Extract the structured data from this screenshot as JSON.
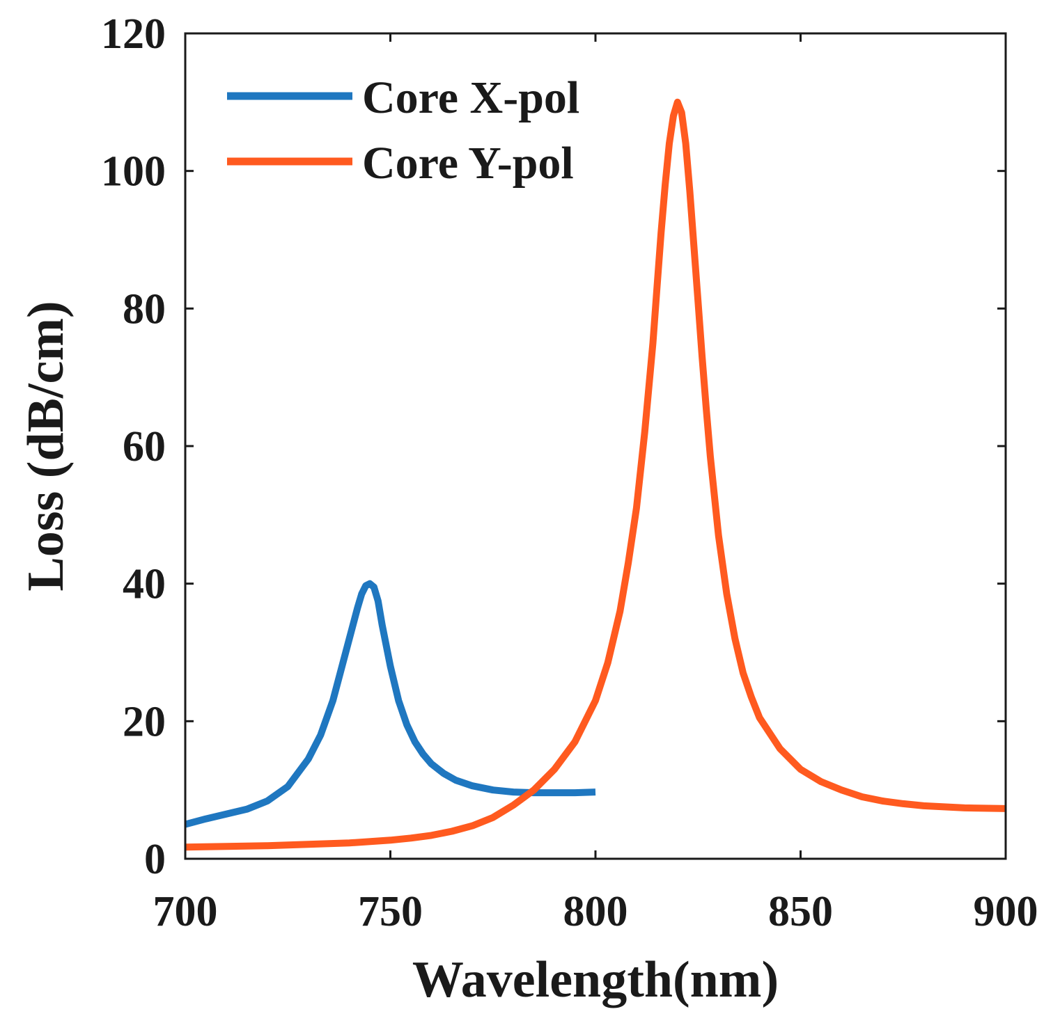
{
  "chart_data": {
    "type": "line",
    "title": "",
    "xlabel": "Wavelength(nm)",
    "ylabel": "Loss (dB/cm)",
    "xlim": [
      700,
      900
    ],
    "ylim": [
      0,
      120
    ],
    "xticks": [
      700,
      750,
      800,
      850,
      900
    ],
    "yticks": [
      0,
      20,
      40,
      60,
      80,
      100,
      120
    ],
    "xtick_labels": [
      "700",
      "750",
      "800",
      "850",
      "900"
    ],
    "ytick_labels": [
      "0",
      "20",
      "40",
      "60",
      "80",
      "100",
      "120"
    ],
    "grid": false,
    "legend_position": "top-left",
    "series": [
      {
        "name": "Core X-pol",
        "color": "#1f77c0",
        "x": [
          700,
          705,
          710,
          715,
          720,
          725,
          730,
          733,
          736,
          738,
          740,
          742,
          743,
          744,
          745,
          746,
          747,
          748,
          750,
          752,
          754,
          756,
          758,
          760,
          763,
          766,
          770,
          775,
          780,
          785,
          790,
          795,
          800
        ],
        "y": [
          5.0,
          5.8,
          6.5,
          7.2,
          8.4,
          10.5,
          14.5,
          18.0,
          23.0,
          27.5,
          32.0,
          36.5,
          38.5,
          39.7,
          40.0,
          39.5,
          37.5,
          34.0,
          28.0,
          23.0,
          19.5,
          17.0,
          15.2,
          13.8,
          12.4,
          11.4,
          10.6,
          10.0,
          9.7,
          9.6,
          9.6,
          9.6,
          9.7
        ]
      },
      {
        "name": "Core Y-pol",
        "color": "#ff5a1f",
        "x": [
          700,
          710,
          720,
          730,
          740,
          750,
          755,
          760,
          765,
          770,
          775,
          780,
          785,
          790,
          795,
          800,
          803,
          806,
          808,
          810,
          812,
          814,
          815,
          816,
          817,
          818,
          819,
          820,
          821,
          822,
          823,
          824,
          825,
          826,
          827,
          828,
          830,
          832,
          834,
          836,
          838,
          840,
          845,
          850,
          855,
          860,
          865,
          870,
          875,
          880,
          890,
          900
        ],
        "y": [
          1.7,
          1.8,
          1.9,
          2.1,
          2.3,
          2.7,
          3.0,
          3.4,
          4.0,
          4.8,
          6.0,
          7.8,
          10.0,
          13.0,
          17.0,
          23.0,
          28.5,
          36.0,
          43.0,
          51.0,
          62.0,
          75.0,
          83.0,
          91.0,
          98.0,
          104.0,
          108.0,
          110.0,
          108.5,
          104.0,
          97.0,
          89.0,
          81.0,
          73.0,
          65.5,
          58.5,
          47.0,
          38.5,
          32.0,
          27.0,
          23.5,
          20.5,
          16.0,
          13.0,
          11.2,
          10.0,
          9.0,
          8.4,
          8.0,
          7.7,
          7.4,
          7.3
        ]
      }
    ]
  }
}
